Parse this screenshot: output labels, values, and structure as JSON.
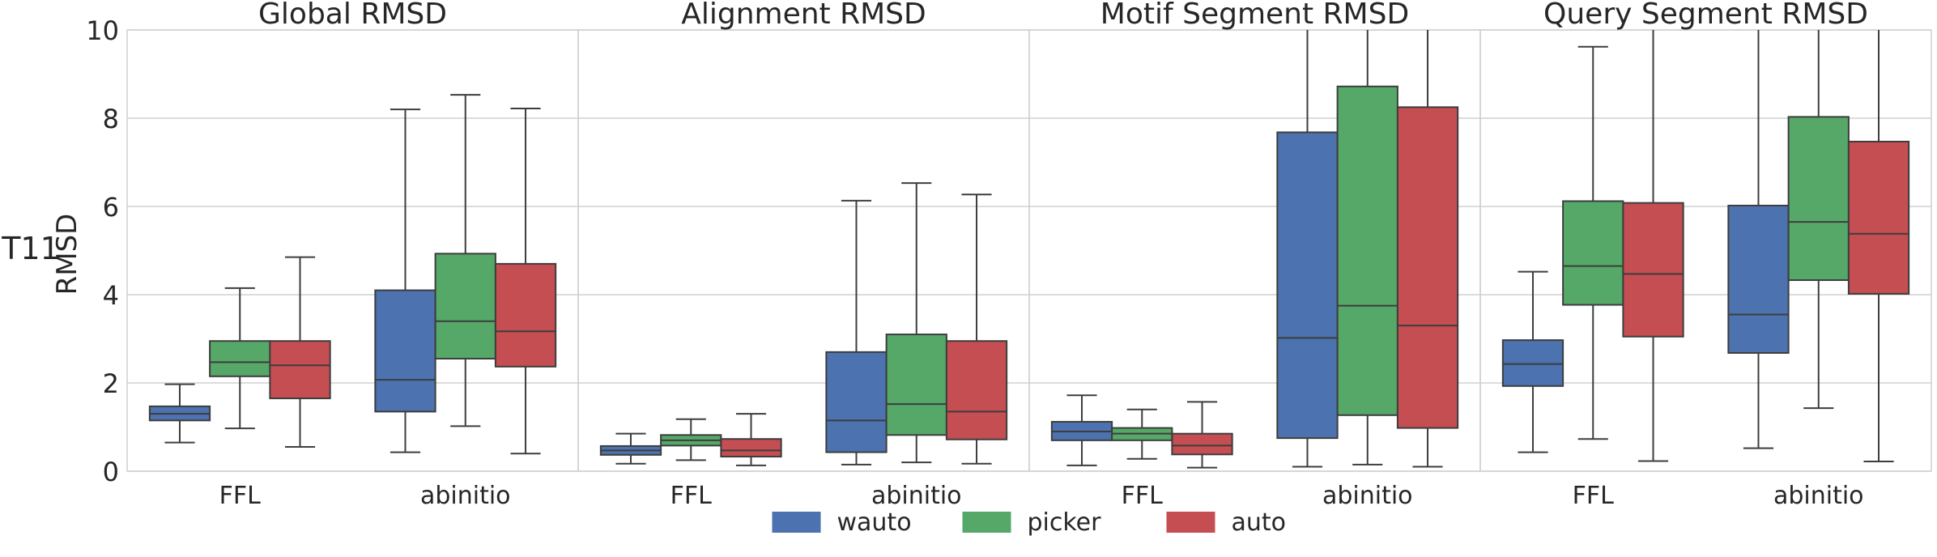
{
  "chart_data": {
    "type": "box",
    "row_label": "T11",
    "ylabel": "RMSD",
    "ylim": [
      0,
      10
    ],
    "yticks": [
      "0",
      "2",
      "4",
      "6",
      "8",
      "10"
    ],
    "grid": true,
    "legend_placement": "bottom-center",
    "categories": [
      "FFL",
      "abinitio"
    ],
    "series": [
      {
        "name": "wauto",
        "color": "#4C72B0"
      },
      {
        "name": "picker",
        "color": "#55A868"
      },
      {
        "name": "auto",
        "color": "#C44E52"
      }
    ],
    "panels": [
      {
        "title": "Global RMSD",
        "groups": [
          {
            "category": "FFL",
            "boxes": [
              {
                "series": "wauto",
                "lo": 0.65,
                "q1": 1.15,
                "median": 1.3,
                "q3": 1.47,
                "hi": 1.97
              },
              {
                "series": "picker",
                "lo": 0.97,
                "q1": 2.15,
                "median": 2.47,
                "q3": 2.95,
                "hi": 4.15
              },
              {
                "series": "auto",
                "lo": 0.55,
                "q1": 1.65,
                "median": 2.4,
                "q3": 2.95,
                "hi": 4.85
              }
            ]
          },
          {
            "category": "abinitio",
            "boxes": [
              {
                "series": "wauto",
                "lo": 0.43,
                "q1": 1.35,
                "median": 2.07,
                "q3": 4.1,
                "hi": 8.2
              },
              {
                "series": "picker",
                "lo": 1.02,
                "q1": 2.55,
                "median": 3.4,
                "q3": 4.93,
                "hi": 8.53
              },
              {
                "series": "auto",
                "lo": 0.4,
                "q1": 2.37,
                "median": 3.17,
                "q3": 4.7,
                "hi": 8.22
              }
            ]
          }
        ]
      },
      {
        "title": "Alignment RMSD",
        "groups": [
          {
            "category": "FFL",
            "boxes": [
              {
                "series": "wauto",
                "lo": 0.17,
                "q1": 0.37,
                "median": 0.47,
                "q3": 0.57,
                "hi": 0.85
              },
              {
                "series": "picker",
                "lo": 0.25,
                "q1": 0.58,
                "median": 0.7,
                "q3": 0.82,
                "hi": 1.18
              },
              {
                "series": "auto",
                "lo": 0.13,
                "q1": 0.33,
                "median": 0.47,
                "q3": 0.73,
                "hi": 1.3
              }
            ]
          },
          {
            "category": "abinitio",
            "boxes": [
              {
                "series": "wauto",
                "lo": 0.15,
                "q1": 0.43,
                "median": 1.15,
                "q3": 2.7,
                "hi": 6.13
              },
              {
                "series": "picker",
                "lo": 0.2,
                "q1": 0.82,
                "median": 1.52,
                "q3": 3.1,
                "hi": 6.53
              },
              {
                "series": "auto",
                "lo": 0.17,
                "q1": 0.72,
                "median": 1.35,
                "q3": 2.95,
                "hi": 6.27
              }
            ]
          }
        ]
      },
      {
        "title": "Motif Segment RMSD",
        "groups": [
          {
            "category": "FFL",
            "boxes": [
              {
                "series": "wauto",
                "lo": 0.13,
                "q1": 0.7,
                "median": 0.9,
                "q3": 1.12,
                "hi": 1.72
              },
              {
                "series": "picker",
                "lo": 0.28,
                "q1": 0.7,
                "median": 0.85,
                "q3": 0.98,
                "hi": 1.4
              },
              {
                "series": "auto",
                "lo": 0.08,
                "q1": 0.38,
                "median": 0.58,
                "q3": 0.85,
                "hi": 1.57
              }
            ]
          },
          {
            "category": "abinitio",
            "boxes": [
              {
                "series": "wauto",
                "lo": 0.1,
                "q1": 0.75,
                "median": 3.02,
                "q3": 7.68,
                "hi": 10.0
              },
              {
                "series": "picker",
                "lo": 0.15,
                "q1": 1.27,
                "median": 3.75,
                "q3": 8.72,
                "hi": 10.0
              },
              {
                "series": "auto",
                "lo": 0.1,
                "q1": 0.98,
                "median": 3.3,
                "q3": 8.25,
                "hi": 10.0
              }
            ]
          }
        ]
      },
      {
        "title": "Query Segment RMSD",
        "groups": [
          {
            "category": "FFL",
            "boxes": [
              {
                "series": "wauto",
                "lo": 0.43,
                "q1": 1.93,
                "median": 2.43,
                "q3": 2.97,
                "hi": 4.52
              },
              {
                "series": "picker",
                "lo": 0.73,
                "q1": 3.77,
                "median": 4.65,
                "q3": 6.12,
                "hi": 9.62
              },
              {
                "series": "auto",
                "lo": 0.23,
                "q1": 3.05,
                "median": 4.47,
                "q3": 6.08,
                "hi": 10.0
              }
            ]
          },
          {
            "category": "abinitio",
            "boxes": [
              {
                "series": "wauto",
                "lo": 0.52,
                "q1": 2.68,
                "median": 3.55,
                "q3": 6.02,
                "hi": 10.0
              },
              {
                "series": "picker",
                "lo": 1.43,
                "q1": 4.33,
                "median": 5.65,
                "q3": 8.03,
                "hi": 10.0
              },
              {
                "series": "auto",
                "lo": 0.22,
                "q1": 4.02,
                "median": 5.38,
                "q3": 7.47,
                "hi": 10.0
              }
            ]
          }
        ]
      }
    ]
  }
}
